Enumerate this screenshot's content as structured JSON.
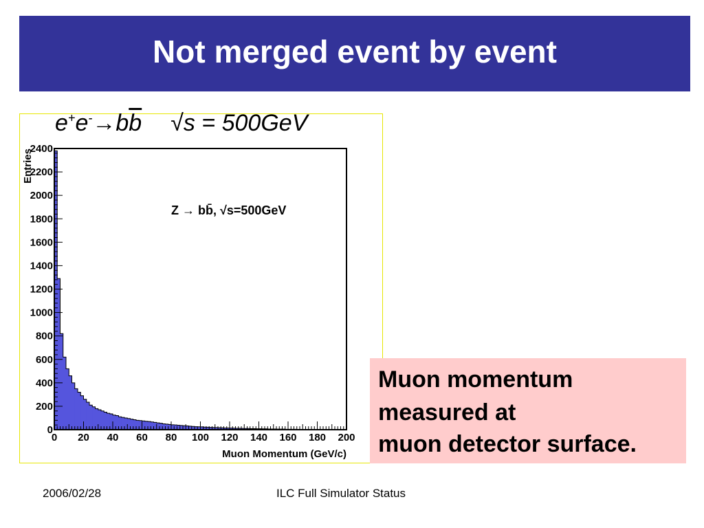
{
  "slide": {
    "title": "Not merged event by event",
    "process": {
      "e_plus_base": "e",
      "e_plus_sup": "+",
      "e_minus_base": "e",
      "e_minus_sup": "-",
      "arrow": "→",
      "b": "b",
      "bbar": "b",
      "sqrt_s": "√s = 500GeV"
    },
    "note_lines": [
      "Muon momentum",
      "measured at",
      "muon detector surface."
    ],
    "footer_left": "2006/02/28",
    "footer_center": "ILC Full Simulator Status"
  },
  "colors": {
    "title_bg": "#333399",
    "histogram_fill": "#5555dd",
    "note_bg": "#ffcccc",
    "frame_border": "#e6e600"
  },
  "chart_data": {
    "type": "bar",
    "xlabel": "Muon Momentum (GeV/c)",
    "ylabel": "Entries",
    "annotation": "Z → bb̄, √s=500GeV",
    "xlim": [
      0,
      200
    ],
    "ylim": [
      0,
      2400
    ],
    "bin_width": 2,
    "xticks": [
      0,
      20,
      40,
      60,
      80,
      100,
      120,
      140,
      160,
      180,
      200
    ],
    "yticks": [
      0,
      200,
      400,
      600,
      800,
      1000,
      1200,
      1400,
      1600,
      1800,
      2000,
      2200,
      2400
    ],
    "values": [
      2380,
      1290,
      820,
      620,
      520,
      460,
      400,
      350,
      320,
      290,
      260,
      235,
      210,
      195,
      180,
      170,
      160,
      150,
      140,
      135,
      125,
      120,
      110,
      105,
      100,
      95,
      90,
      85,
      80,
      78,
      75,
      72,
      70,
      66,
      62,
      58,
      55,
      50,
      48,
      45,
      42,
      40,
      38,
      36,
      34,
      32,
      30,
      28,
      26,
      25,
      24,
      22,
      21,
      20,
      19,
      18,
      17,
      16,
      15,
      15,
      14,
      13,
      12,
      12,
      11,
      10,
      10,
      9,
      9,
      8,
      8,
      7,
      7,
      6,
      6,
      6,
      5,
      5,
      5,
      4,
      4,
      4,
      4,
      3,
      3,
      3,
      3,
      3,
      2,
      2,
      2,
      2,
      2,
      2,
      1,
      1,
      1,
      1,
      1,
      1
    ],
    "grid": false,
    "legend": "none"
  }
}
